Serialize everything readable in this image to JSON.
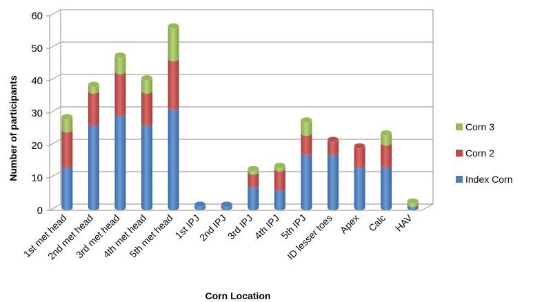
{
  "chart_data": {
    "type": "bar",
    "stacked": true,
    "style": "3d-cylinder",
    "title": "",
    "xlabel": "Corn Location",
    "ylabel": "Number of participants",
    "ylim": [
      0,
      60
    ],
    "yticks": [
      0,
      10,
      20,
      30,
      40,
      50,
      60
    ],
    "grid": true,
    "legend_position": "right",
    "categories": [
      "1st met head",
      "2nd met head",
      "3rd met head",
      "4th met head",
      "5th met head",
      "1st IPJ",
      "2nd IPJ",
      "3rd IPJ",
      "4th IPJ",
      "5th IPJ",
      "ID lesser toes",
      "Apex",
      "Calc",
      "HAV"
    ],
    "series": [
      {
        "name": "Index Corn",
        "color": "#4a7ebb",
        "values": [
          13,
          26,
          29,
          26,
          31,
          1,
          1,
          7,
          6,
          17,
          17,
          13,
          13,
          1
        ]
      },
      {
        "name": "Corn 2",
        "color": "#be4b48",
        "values": [
          11,
          10,
          13,
          10,
          15,
          0,
          0,
          4,
          6,
          6,
          4,
          6,
          7,
          0
        ]
      },
      {
        "name": "Corn 3",
        "color": "#98b954",
        "values": [
          4,
          2,
          5,
          4,
          10,
          0,
          0,
          1,
          1,
          4,
          0,
          0,
          3,
          1
        ]
      }
    ],
    "legend_order": [
      "Corn 3",
      "Corn 2",
      "Index Corn"
    ]
  }
}
